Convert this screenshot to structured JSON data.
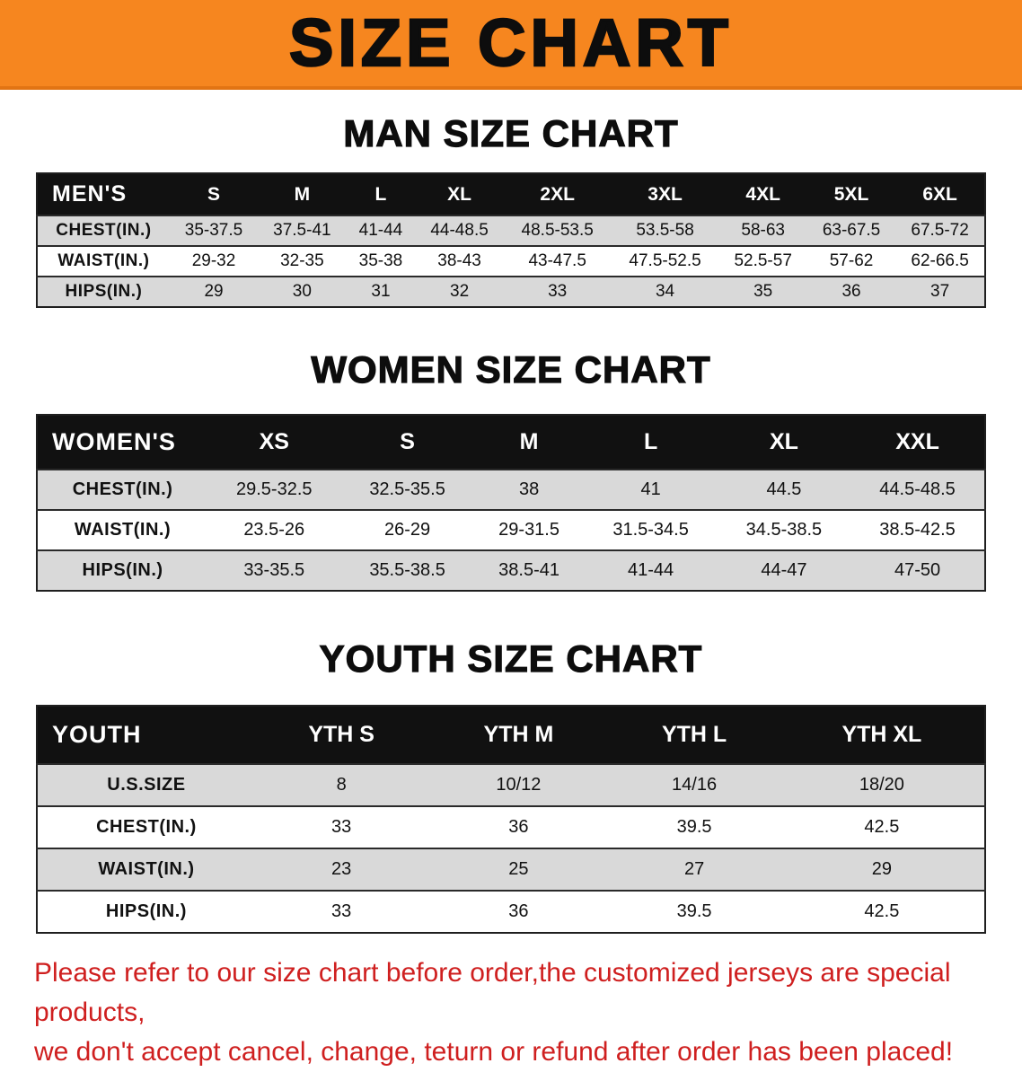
{
  "banner": {
    "title": "SIZE CHART"
  },
  "colors": {
    "banner_bg": "#f6861f",
    "header_row_bg": "#111111",
    "stripe_bg": "#d9d9d9",
    "note_color": "#cf1f1f"
  },
  "footer": {
    "line1": "Please refer to our size chart before order,the customized jerseys are special products,",
    "line2": "we don't accept cancel, change, teturn or refund after order has been placed!"
  },
  "chart_data": [
    {
      "type": "table",
      "title": "MAN SIZE CHART",
      "corner": "MEN'S",
      "columns": [
        "S",
        "M",
        "L",
        "XL",
        "2XL",
        "3XL",
        "4XL",
        "5XL",
        "6XL"
      ],
      "rows": [
        {
          "label": "CHEST(IN.)",
          "values": [
            "35-37.5",
            "37.5-41",
            "41-44",
            "44-48.5",
            "48.5-53.5",
            "53.5-58",
            "58-63",
            "63-67.5",
            "67.5-72"
          ]
        },
        {
          "label": "WAIST(IN.)",
          "values": [
            "29-32",
            "32-35",
            "35-38",
            "38-43",
            "43-47.5",
            "47.5-52.5",
            "52.5-57",
            "57-62",
            "62-66.5"
          ]
        },
        {
          "label": "HIPS(IN.)",
          "values": [
            "29",
            "30",
            "31",
            "32",
            "33",
            "34",
            "35",
            "36",
            "37"
          ]
        }
      ]
    },
    {
      "type": "table",
      "title": "WOMEN SIZE CHART",
      "corner": "WOMEN'S",
      "columns": [
        "XS",
        "S",
        "M",
        "L",
        "XL",
        "XXL"
      ],
      "rows": [
        {
          "label": "CHEST(IN.)",
          "values": [
            "29.5-32.5",
            "32.5-35.5",
            "38",
            "41",
            "44.5",
            "44.5-48.5"
          ]
        },
        {
          "label": "WAIST(IN.)",
          "values": [
            "23.5-26",
            "26-29",
            "29-31.5",
            "31.5-34.5",
            "34.5-38.5",
            "38.5-42.5"
          ]
        },
        {
          "label": "HIPS(IN.)",
          "values": [
            "33-35.5",
            "35.5-38.5",
            "38.5-41",
            "41-44",
            "44-47",
            "47-50"
          ]
        }
      ]
    },
    {
      "type": "table",
      "title": "YOUTH SIZE CHART",
      "corner": "YOUTH",
      "columns": [
        "YTH S",
        "YTH M",
        "YTH L",
        "YTH XL"
      ],
      "rows": [
        {
          "label": "U.S.SIZE",
          "values": [
            "8",
            "10/12",
            "14/16",
            "18/20"
          ]
        },
        {
          "label": "CHEST(IN.)",
          "values": [
            "33",
            "36",
            "39.5",
            "42.5"
          ]
        },
        {
          "label": "WAIST(IN.)",
          "values": [
            "23",
            "25",
            "27",
            "29"
          ]
        },
        {
          "label": "HIPS(IN.)",
          "values": [
            "33",
            "36",
            "39.5",
            "42.5"
          ]
        }
      ]
    }
  ]
}
